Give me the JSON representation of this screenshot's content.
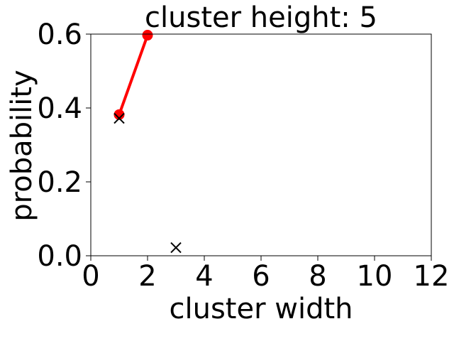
{
  "chart_data": {
    "type": "scatter",
    "title": "cluster height: 5",
    "xlabel": "cluster width",
    "ylabel": "probability",
    "xlim": [
      0,
      12
    ],
    "ylim": [
      0,
      0.6
    ],
    "xticks": [
      "0",
      "2",
      "4",
      "6",
      "8",
      "10",
      "12"
    ],
    "yticks": [
      "0.0",
      "0.2",
      "0.4",
      "0.6"
    ],
    "grid": false,
    "series": [
      {
        "marker": "circle",
        "line": true,
        "color": "#ff0000",
        "x": [
          1,
          2
        ],
        "y": [
          0.382,
          0.597
        ]
      },
      {
        "marker": "x",
        "line": false,
        "color": "#000000",
        "x": [
          1,
          3
        ],
        "y": [
          0.372,
          0.022
        ]
      }
    ]
  }
}
